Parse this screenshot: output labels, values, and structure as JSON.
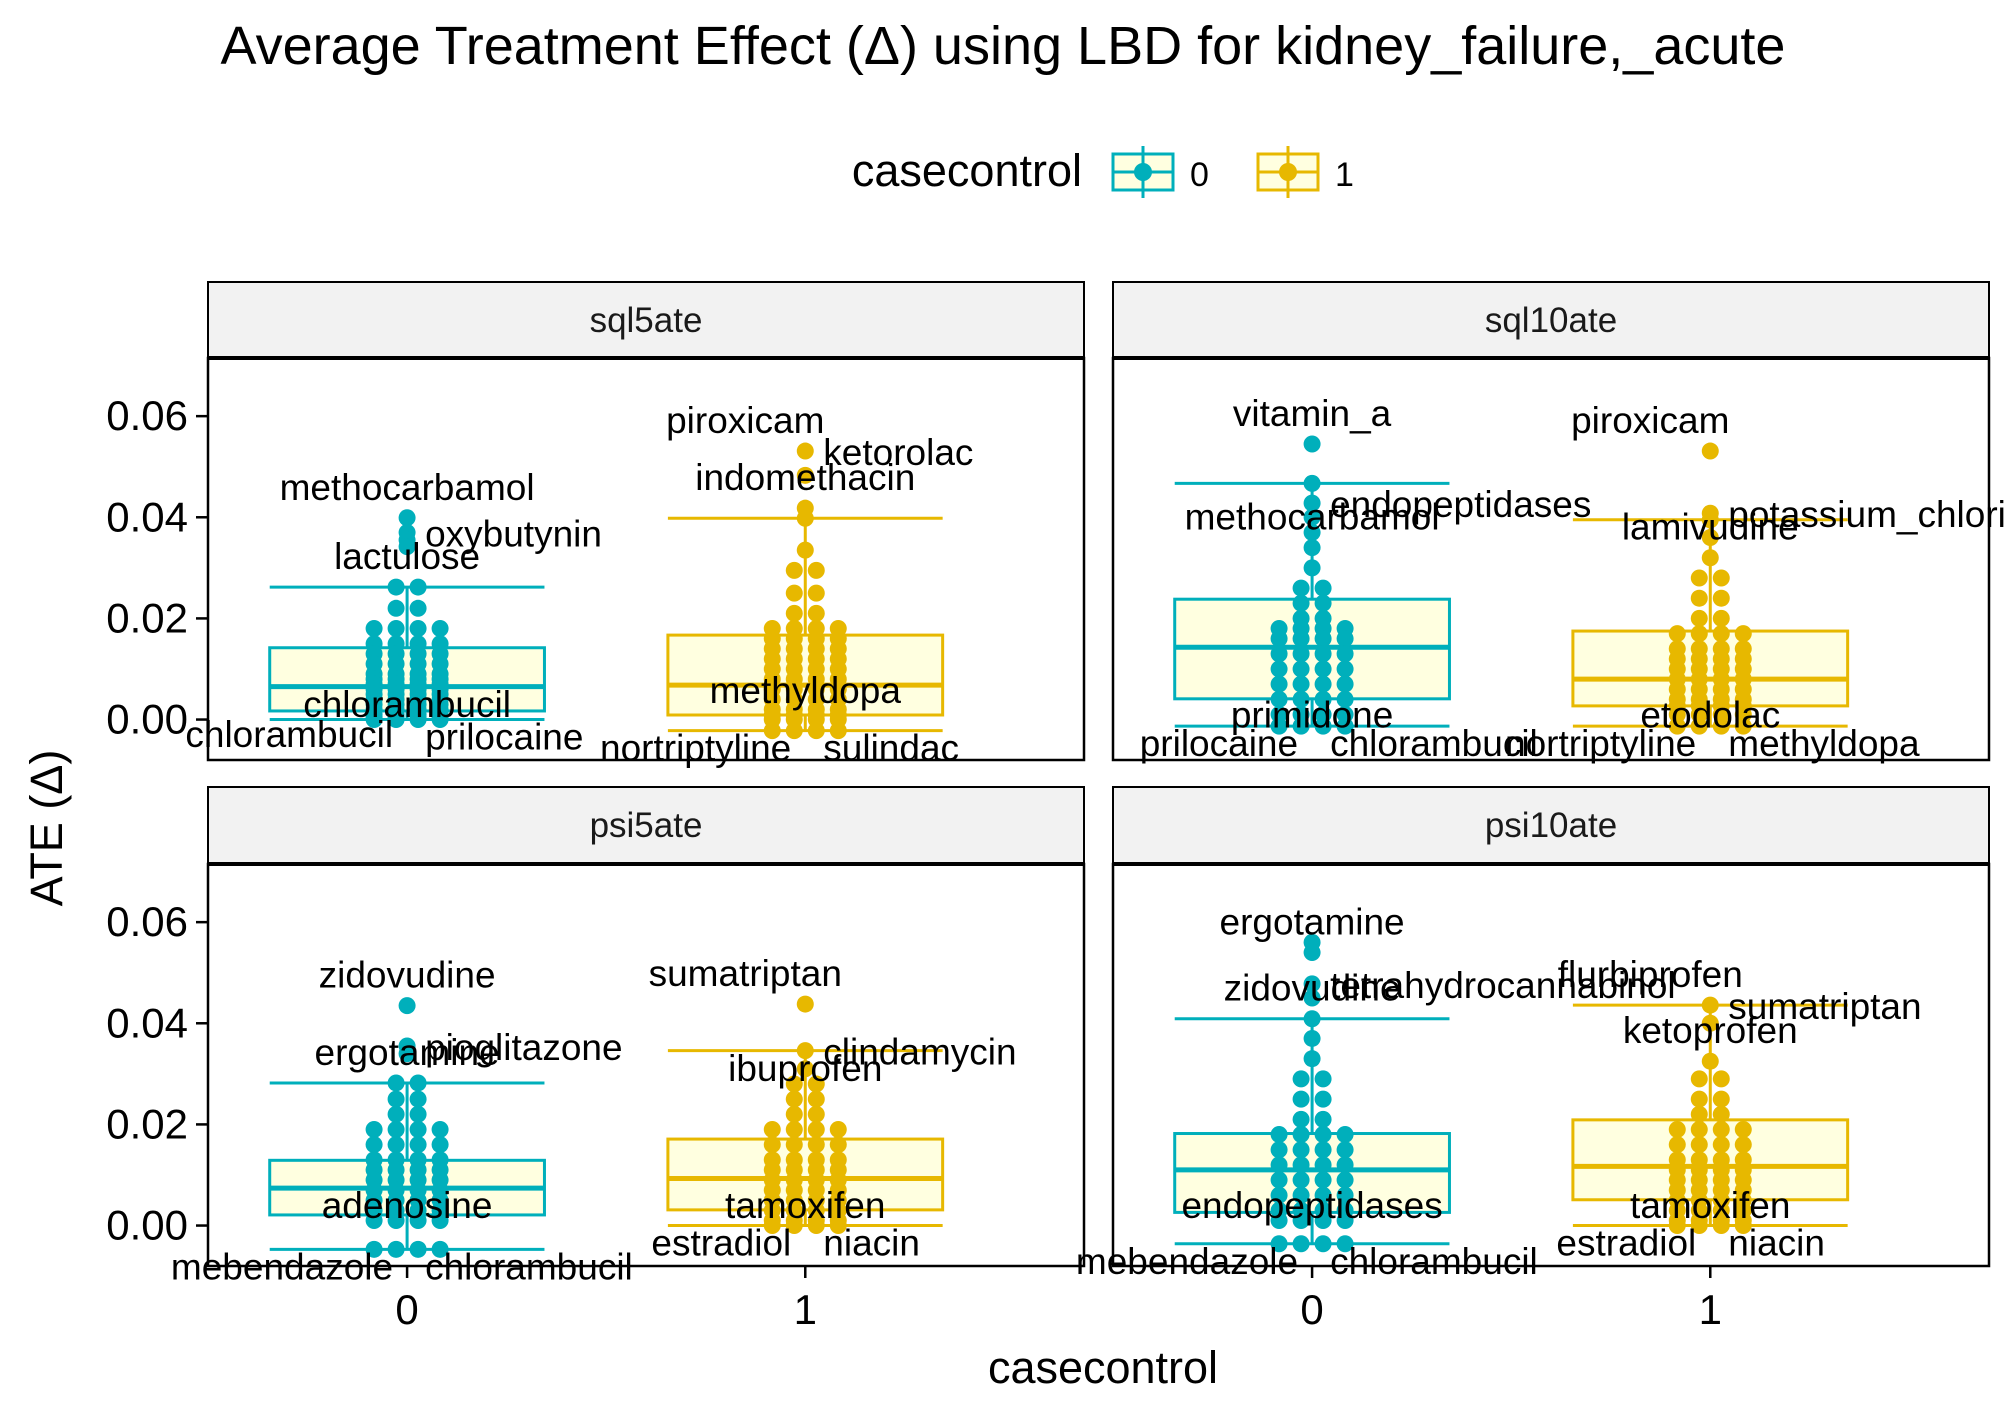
{
  "chart_data": {
    "type": "boxplot",
    "title": "Average Treatment Effect (Δ) using LBD for kidney_failure,_acute",
    "xlabel": "casecontrol",
    "ylabel": "ATE (Δ)",
    "ylim": [
      -0.008,
      0.0715
    ],
    "y_ticks": [
      "0.00",
      "0.02",
      "0.04",
      "0.06"
    ],
    "y_tick_values": [
      0,
      0.02,
      0.04,
      0.06
    ],
    "categories": [
      "0",
      "1"
    ],
    "legend": {
      "title": "casecontrol",
      "position": "top",
      "entries": [
        "0",
        "1"
      ]
    },
    "colors": {
      "0": "#00AFBB",
      "1": "#E7B800",
      "box_fill": "#FFFFE0",
      "strip_fill": "#F2F2F2"
    },
    "panels": [
      {
        "strip": "sql5ate",
        "groups": [
          {
            "casecontrol": "0",
            "q1": 0.0017,
            "median": 0.0065,
            "q3": 0.0142,
            "whisker_low": 0.0,
            "whisker_high": 0.0262,
            "points": [
              0.0399,
              0.037,
              0.0355,
              0.0342,
              0.0262,
              0.022,
              0.018,
              0.015,
              0.013,
              0.011,
              0.009,
              0.008,
              0.007,
              0.006,
              0.005,
              0.004,
              0.003,
              0.002,
              0.001,
              0.0005,
              0.0
            ],
            "labels": [
              {
                "text": "methocarbamol",
                "x": 0.0,
                "y": 0.0399
              },
              {
                "text": "oxybutynin",
                "x": 0.0,
                "y": 0.037
              },
              {
                "text": "lactulose",
                "x": 0.0,
                "y": 0.0262
              },
              {
                "text": "chlorambucil",
                "x": 0.0,
                "y": 0.006
              },
              {
                "text": "chlorambucil",
                "x": 0.0,
                "y": 0.0005
              },
              {
                "text": "prilocaine",
                "x": 0.0,
                "y": 0.0
              }
            ]
          },
          {
            "casecontrol": "1",
            "q1": 0.0009,
            "median": 0.0068,
            "q3": 0.0167,
            "whisker_low": -0.0022,
            "whisker_high": 0.0398,
            "points": [
              0.0531,
              0.0483,
              0.0418,
              0.0398,
              0.0335,
              0.0295,
              0.025,
              0.021,
              0.018,
              0.016,
              0.014,
              0.012,
              0.01,
              0.008,
              0.006,
              0.004,
              0.002,
              0.0009,
              0.0,
              -0.0022
            ],
            "labels": [
              {
                "text": "piroxicam",
                "x": 1.0,
                "y": 0.0531
              },
              {
                "text": "ketorolac",
                "x": 1.0,
                "y": 0.0531
              },
              {
                "text": "indomethacin",
                "x": 1.0,
                "y": 0.0418
              },
              {
                "text": "methyldopa",
                "x": 1.0,
                "y": 0.0088
              },
              {
                "text": "nortriptyline",
                "x": 1.0,
                "y": -0.0022
              },
              {
                "text": "sulindac",
                "x": 1.0,
                "y": -0.0022
              }
            ]
          }
        ]
      },
      {
        "strip": "sql10ate",
        "groups": [
          {
            "casecontrol": "0",
            "q1": 0.0041,
            "median": 0.0143,
            "q3": 0.0238,
            "whisker_low": -0.0013,
            "whisker_high": 0.0467,
            "points": [
              0.0545,
              0.0467,
              0.0428,
              0.04,
              0.037,
              0.034,
              0.03,
              0.026,
              0.023,
              0.02,
              0.018,
              0.016,
              0.013,
              0.01,
              0.007,
              0.004,
              0.001,
              -0.0013
            ],
            "labels": [
              {
                "text": "vitamin_a",
                "x": 0.0,
                "y": 0.0545
              },
              {
                "text": "endopeptidases",
                "x": 0.0,
                "y": 0.0428
              },
              {
                "text": "methocarbamol",
                "x": 0.0,
                "y": 0.034
              },
              {
                "text": "primidone",
                "x": 0.0,
                "y": 0.004
              },
              {
                "text": "prilocaine",
                "x": 0.0,
                "y": -0.0013
              },
              {
                "text": "chlorambucil",
                "x": 0.0,
                "y": -0.0013
              }
            ]
          },
          {
            "casecontrol": "1",
            "q1": 0.0027,
            "median": 0.008,
            "q3": 0.0175,
            "whisker_low": -0.0013,
            "whisker_high": 0.0395,
            "points": [
              0.0531,
              0.0408,
              0.0395,
              0.036,
              0.032,
              0.028,
              0.024,
              0.02,
              0.017,
              0.014,
              0.012,
              0.01,
              0.008,
              0.006,
              0.004,
              0.0027,
              0.001,
              -0.0013
            ],
            "labels": [
              {
                "text": "piroxicam",
                "x": 1.0,
                "y": 0.0531
              },
              {
                "text": "potassium_chloride",
                "x": 1.0,
                "y": 0.0408
              },
              {
                "text": "lamivudine",
                "x": 1.0,
                "y": 0.032
              },
              {
                "text": "etodolac",
                "x": 1.0,
                "y": 0.004
              },
              {
                "text": "nortriptyline",
                "x": 1.0,
                "y": -0.0013
              },
              {
                "text": "methyldopa",
                "x": 1.0,
                "y": -0.0013
              }
            ]
          }
        ]
      },
      {
        "strip": "psi5ate",
        "groups": [
          {
            "casecontrol": "0",
            "q1": 0.0021,
            "median": 0.0074,
            "q3": 0.0129,
            "whisker_low": -0.0047,
            "whisker_high": 0.0282,
            "points": [
              0.0435,
              0.0355,
              0.034,
              0.0282,
              0.025,
              0.022,
              0.019,
              0.016,
              0.013,
              0.011,
              0.009,
              0.007,
              0.005,
              0.003,
              0.001,
              -0.0047
            ],
            "labels": [
              {
                "text": "zidovudine",
                "x": 0.0,
                "y": 0.0435
              },
              {
                "text": "pioglitazone",
                "x": 0.0,
                "y": 0.0355
              },
              {
                "text": "ergotamine",
                "x": 0.0,
                "y": 0.0282
              },
              {
                "text": "adenosine",
                "x": 0.0,
                "y": 0.007
              },
              {
                "text": "mebendazole",
                "x": 0.0,
                "y": -0.0047
              },
              {
                "text": "chlorambucil",
                "x": 0.0,
                "y": -0.0047
              }
            ]
          },
          {
            "casecontrol": "1",
            "q1": 0.0031,
            "median": 0.0093,
            "q3": 0.0171,
            "whisker_low": 0.0,
            "whisker_high": 0.0346,
            "points": [
              0.0438,
              0.0346,
              0.031,
              0.028,
              0.025,
              0.022,
              0.019,
              0.016,
              0.013,
              0.011,
              0.009,
              0.007,
              0.005,
              0.003,
              0.001,
              0.0
            ],
            "labels": [
              {
                "text": "sumatriptan",
                "x": 1.0,
                "y": 0.0438
              },
              {
                "text": "clindamycin",
                "x": 1.0,
                "y": 0.0346
              },
              {
                "text": "ibuprofen",
                "x": 1.0,
                "y": 0.025
              },
              {
                "text": "tamoxifen",
                "x": 1.0,
                "y": 0.007
              },
              {
                "text": "estradiol",
                "x": 1.0,
                "y": 0.0
              },
              {
                "text": "niacin",
                "x": 1.0,
                "y": 0.0
              }
            ]
          }
        ]
      },
      {
        "strip": "psi10ate",
        "groups": [
          {
            "casecontrol": "0",
            "q1": 0.0026,
            "median": 0.011,
            "q3": 0.0182,
            "whisker_low": -0.0036,
            "whisker_high": 0.0409,
            "points": [
              0.056,
              0.054,
              0.0478,
              0.045,
              0.0409,
              0.037,
              0.033,
              0.029,
              0.025,
              0.021,
              0.018,
              0.015,
              0.012,
              0.009,
              0.006,
              0.003,
              0.001,
              -0.0036
            ],
            "labels": [
              {
                "text": "ergotamine",
                "x": 0.0,
                "y": 0.054
              },
              {
                "text": "tetrahydrocannabinol",
                "x": 0.0,
                "y": 0.0478
              },
              {
                "text": "zidovudine",
                "x": 0.0,
                "y": 0.0409
              },
              {
                "text": "endopeptidases",
                "x": 0.0,
                "y": 0.007
              },
              {
                "text": "mebendazole",
                "x": 0.0,
                "y": -0.0036
              },
              {
                "text": "chlorambucil",
                "x": 0.0,
                "y": -0.0036
              }
            ]
          },
          {
            "casecontrol": "1",
            "q1": 0.0051,
            "median": 0.0117,
            "q3": 0.0209,
            "whisker_low": 0.0,
            "whisker_high": 0.0436,
            "points": [
              0.0436,
              0.04,
              0.0325,
              0.029,
              0.025,
              0.022,
              0.019,
              0.016,
              0.013,
              0.011,
              0.009,
              0.007,
              0.005,
              0.003,
              0.001,
              0.0
            ],
            "labels": [
              {
                "text": "flurbiprofen",
                "x": 1.0,
                "y": 0.0436
              },
              {
                "text": "sumatriptan",
                "x": 1.0,
                "y": 0.0436
              },
              {
                "text": "ketoprofen",
                "x": 1.0,
                "y": 0.0325
              },
              {
                "text": "tamoxifen",
                "x": 1.0,
                "y": 0.007
              },
              {
                "text": "estradiol",
                "x": 1.0,
                "y": 0.0
              },
              {
                "text": "niacin",
                "x": 1.0,
                "y": 0.0
              }
            ]
          }
        ]
      }
    ]
  }
}
